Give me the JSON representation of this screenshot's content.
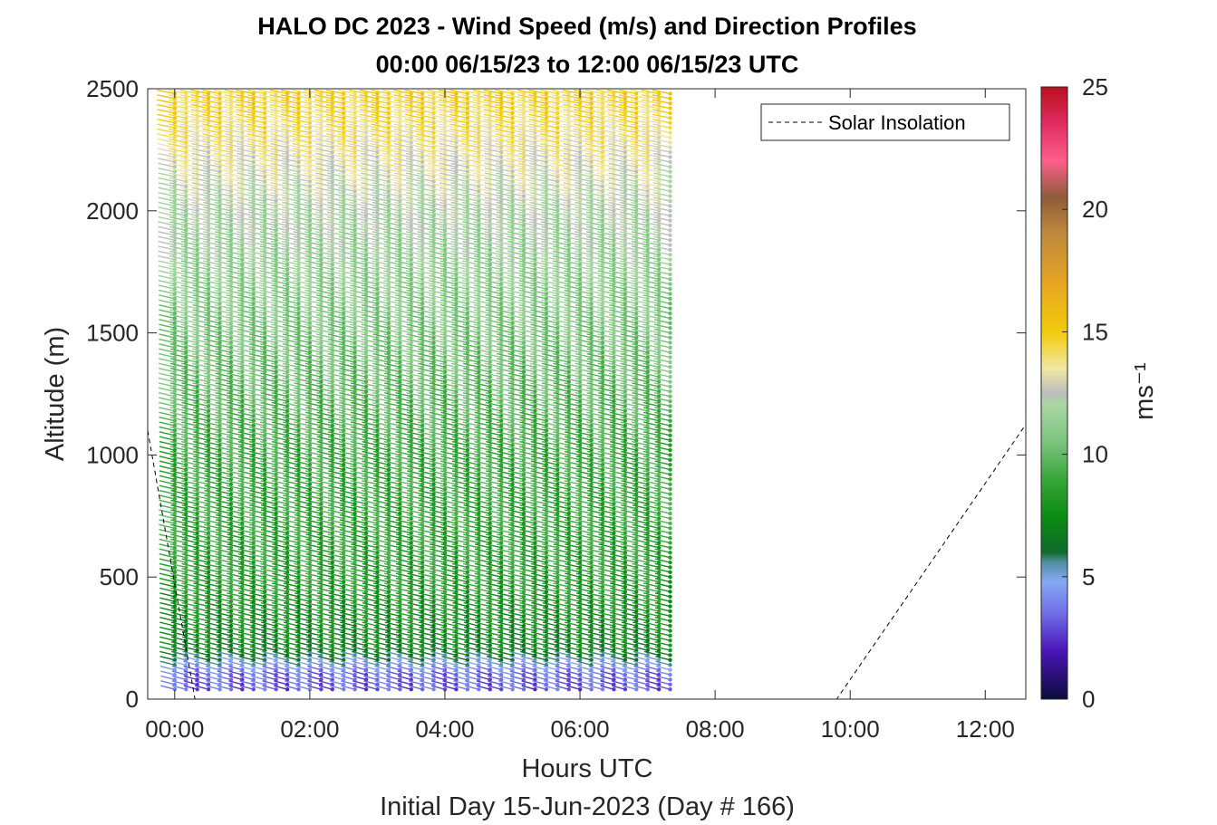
{
  "chart_data": {
    "type": "scatter",
    "title": [
      "HALO DC 2023 - Wind Speed (m/s) and Direction Profiles",
      "00:00 06/15/23 to 12:00 06/15/23  UTC"
    ],
    "xlabel": "Hours UTC",
    "xsublabel": "Initial Day 15-Jun-2023 (Day # 166)",
    "ylabel": "Altitude (m)",
    "xlim": [
      -0.4,
      12.6
    ],
    "ylim": [
      0,
      2500
    ],
    "x_ticks": [
      0,
      2,
      4,
      6,
      8,
      10,
      12
    ],
    "x_tick_labels": [
      "00:00",
      "02:00",
      "04:00",
      "06:00",
      "08:00",
      "10:00",
      "12:00"
    ],
    "y_ticks": [
      0,
      500,
      1000,
      1500,
      2000,
      2500
    ],
    "y_tick_labels": [
      "0",
      "500",
      "1000",
      "1500",
      "2000",
      "2500"
    ],
    "legend": {
      "entries": [
        "Solar Insolation"
      ],
      "position": "top-right"
    },
    "colorbar": {
      "label": "ms⁻¹",
      "range": [
        0,
        25
      ],
      "ticks": [
        0,
        5,
        10,
        15,
        20,
        25
      ],
      "tick_labels": [
        "0",
        "5",
        "10",
        "15",
        "20",
        "25"
      ],
      "stops": [
        {
          "v": 0,
          "c": "#0b0b3b"
        },
        {
          "v": 2,
          "c": "#4b16b8"
        },
        {
          "v": 3.5,
          "c": "#6f6ee6"
        },
        {
          "v": 4.8,
          "c": "#86a9f2"
        },
        {
          "v": 5.6,
          "c": "#4f8fa0"
        },
        {
          "v": 6,
          "c": "#0f6b2a"
        },
        {
          "v": 7.5,
          "c": "#0b8c12"
        },
        {
          "v": 9,
          "c": "#3aa63c"
        },
        {
          "v": 10.5,
          "c": "#7cc37e"
        },
        {
          "v": 12,
          "c": "#a9d6a2"
        },
        {
          "v": 12.5,
          "c": "#bdbdbd"
        },
        {
          "v": 13.5,
          "c": "#f1e8a4"
        },
        {
          "v": 15,
          "c": "#f2cb0c"
        },
        {
          "v": 17,
          "c": "#e6a524"
        },
        {
          "v": 19,
          "c": "#bf8a3c"
        },
        {
          "v": 20.5,
          "c": "#8e5c3a"
        },
        {
          "v": 22,
          "c": "#ff5e8a"
        },
        {
          "v": 23.5,
          "c": "#e02c62"
        },
        {
          "v": 25,
          "c": "#b8101e"
        }
      ]
    },
    "wind_profiles": {
      "time_start_hours": 0,
      "time_step_hours": 0.1667,
      "tops_m": [
        2480,
        2480,
        2480,
        2480,
        2480,
        2480,
        2480,
        2480,
        2480,
        2480,
        2480,
        2480,
        2480,
        2480,
        2480,
        2480,
        2480,
        2480,
        2480,
        2480,
        2480,
        2480,
        2480,
        2480,
        2480,
        2480,
        2480,
        2480,
        2480,
        2480,
        2480,
        2480,
        2480,
        2480,
        2480,
        2480,
        2480,
        2480,
        2480,
        2480,
        2480,
        2480,
        2480,
        2480,
        2480
      ],
      "bottom_m": 40,
      "bin_m": 20,
      "speed_profile": [
        {
          "alt": 0,
          "speed": 3.0
        },
        {
          "alt": 100,
          "speed": 3.5
        },
        {
          "alt": 200,
          "speed": 7.0
        },
        {
          "alt": 500,
          "speed": 8.5
        },
        {
          "alt": 1000,
          "speed": 9.0
        },
        {
          "alt": 1500,
          "speed": 10.5
        },
        {
          "alt": 2000,
          "speed": 12.0
        },
        {
          "alt": 2500,
          "speed": 15.0
        }
      ],
      "direction_note": "barbs point from upper-left to lower-right, dot at station end"
    },
    "solar_insolation_line": {
      "x": [
        -0.4,
        0.3,
        9.8,
        12.6
      ],
      "y_fraction": [
        0.44,
        0.0,
        0.0,
        0.45
      ]
    }
  }
}
